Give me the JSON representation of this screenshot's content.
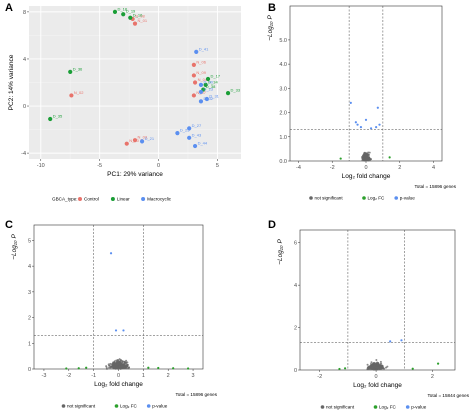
{
  "chart_data": [
    {
      "panel": "A",
      "type": "scatter",
      "xlabel": "PC1: 29% variance",
      "ylabel": "PC2: 14% variance",
      "xlim": [
        -11,
        7
      ],
      "ylim": [
        -4.5,
        8.5
      ],
      "xticks": [
        -10,
        -5,
        0,
        5
      ],
      "yticks": [
        -4,
        0,
        4,
        8
      ],
      "grid": true,
      "legend": {
        "title": "GBCA_type:",
        "placement": "bottom",
        "entries": [
          "Control",
          "Linear",
          "Macrocyclic"
        ]
      },
      "colors": {
        "Control": "#e8736b",
        "Linear": "#1a9e36",
        "Macrocyclic": "#5b8ff0"
      },
      "series": [
        {
          "name": "Control",
          "points": [
            {
              "x": -2.2,
              "y": 7.4,
              "label": "N_08"
            },
            {
              "x": -2.0,
              "y": 7.0,
              "label": "N_01"
            },
            {
              "x": 3.0,
              "y": 3.5,
              "label": "N_06"
            },
            {
              "x": 3.0,
              "y": 2.6,
              "label": "N_09"
            },
            {
              "x": 3.1,
              "y": 2.0,
              "label": "N_04"
            },
            {
              "x": 3.0,
              "y": 0.9,
              "label": "N_07"
            },
            {
              "x": -7.4,
              "y": 0.9,
              "label": "N_02"
            },
            {
              "x": -2.0,
              "y": -2.9,
              "label": "N_03"
            },
            {
              "x": -2.7,
              "y": -3.2,
              "label": "N_10"
            }
          ]
        },
        {
          "name": "Linear",
          "points": [
            {
              "x": -3.7,
              "y": 8.0,
              "label": "D_18"
            },
            {
              "x": -3.0,
              "y": 7.8,
              "label": "D_19"
            },
            {
              "x": -2.4,
              "y": 7.5,
              "label": "D_16"
            },
            {
              "x": -7.5,
              "y": 2.9,
              "label": "D_36"
            },
            {
              "x": 4.2,
              "y": 2.3,
              "label": "D_17"
            },
            {
              "x": 4.0,
              "y": 1.8,
              "label": "D_34"
            },
            {
              "x": 3.8,
              "y": 1.4,
              "label": "D_38"
            },
            {
              "x": 5.9,
              "y": 1.1,
              "label": "D_33"
            },
            {
              "x": -9.2,
              "y": -1.1,
              "label": "D_35"
            }
          ]
        },
        {
          "name": "Macrocyclic",
          "points": [
            {
              "x": 3.2,
              "y": 4.6,
              "label": "D_41"
            },
            {
              "x": 3.6,
              "y": 1.8,
              "label": "D_40"
            },
            {
              "x": 3.6,
              "y": 1.2,
              "label": "D_23"
            },
            {
              "x": 4.1,
              "y": 0.6,
              "label": "D_31"
            },
            {
              "x": 3.6,
              "y": 0.4,
              "label": "D_32"
            },
            {
              "x": 2.6,
              "y": -1.9,
              "label": "D_27"
            },
            {
              "x": 1.6,
              "y": -2.3,
              "label": "D_25"
            },
            {
              "x": -1.4,
              "y": -3.0,
              "label": "D_21"
            },
            {
              "x": 2.6,
              "y": -2.7,
              "label": "D_43"
            },
            {
              "x": 3.1,
              "y": -3.4,
              "label": "D_44"
            }
          ]
        }
      ]
    },
    {
      "panel": "B",
      "type": "scatter",
      "xlabel": "Log₂ fold change",
      "ylabel": "−Log₁₀ P",
      "xlim": [
        -4.5,
        4.5
      ],
      "ylim": [
        0,
        6.4
      ],
      "xticks": [
        -4,
        -2,
        0,
        2,
        4
      ],
      "yticks": [
        0,
        1,
        2,
        3,
        4,
        5
      ],
      "ytick_labels": [
        "0.0",
        "1.0",
        "2.0",
        "3.0",
        "4.0",
        "5.0"
      ],
      "thresholds": {
        "fc": [
          -1,
          1
        ],
        "p": 1.3
      },
      "total": "Total = 15896 genes",
      "legend": {
        "placement": "bottom",
        "entries": [
          "not significant",
          "Log₂ FC",
          "p-value"
        ]
      },
      "colors": {
        "ns": "#666666",
        "fc": "#2ca02c",
        "p": "#5b8ff0"
      },
      "points": {
        "p": [
          [
            -0.9,
            2.4
          ],
          [
            -0.6,
            1.6
          ],
          [
            -0.5,
            1.5
          ],
          [
            -0.3,
            1.4
          ],
          [
            0.3,
            1.35
          ],
          [
            0.0,
            1.7
          ],
          [
            0.8,
            1.5
          ],
          [
            0.7,
            2.2
          ],
          [
            0.6,
            1.4
          ]
        ],
        "fc": [
          [
            1.4,
            0.15
          ],
          [
            -1.5,
            0.1
          ]
        ]
      }
    },
    {
      "panel": "C",
      "type": "scatter",
      "xlabel": "Log₂ fold change",
      "ylabel": "−Log₁₀ P",
      "xlim": [
        -3.4,
        3.4
      ],
      "ylim": [
        0,
        5.6
      ],
      "xticks": [
        -3,
        -2,
        -1,
        0,
        1,
        2,
        3
      ],
      "yticks": [
        0,
        1,
        2,
        3,
        4,
        5
      ],
      "thresholds": {
        "fc": [
          -1,
          1
        ],
        "p": 1.3
      },
      "total": "Total = 15896 genes",
      "legend": {
        "placement": "bottom",
        "entries": [
          "not significant",
          "Log₂ FC",
          "p-value"
        ]
      },
      "colors": {
        "ns": "#666666",
        "fc": "#2ca02c",
        "p": "#5b8ff0"
      },
      "points": {
        "p": [
          [
            -0.3,
            4.5
          ],
          [
            -0.1,
            1.5
          ],
          [
            0.2,
            1.5
          ]
        ],
        "fc": [
          [
            -2.1,
            0.02
          ],
          [
            -1.6,
            0.03
          ],
          [
            -1.3,
            0.05
          ],
          [
            1.2,
            0.05
          ],
          [
            1.6,
            0.04
          ],
          [
            2.2,
            0.03
          ],
          [
            2.8,
            0.02
          ]
        ]
      }
    },
    {
      "panel": "D",
      "type": "scatter",
      "xlabel": "Log₂ fold change",
      "ylabel": "−Log₁₀ P",
      "xlim": [
        -2.7,
        2.8
      ],
      "ylim": [
        0,
        6.6
      ],
      "xticks": [
        -2,
        0,
        2
      ],
      "yticks": [
        0,
        2,
        4,
        6
      ],
      "thresholds": {
        "fc": [
          -1,
          1
        ],
        "p": 1.3
      },
      "total": "Total = 15844 genes",
      "legend": {
        "placement": "bottom",
        "entries": [
          "not significant",
          "Log₂ FC",
          "p-value"
        ]
      },
      "colors": {
        "ns": "#666666",
        "fc": "#2ca02c",
        "p": "#5b8ff0"
      },
      "points": {
        "p": [
          [
            0.9,
            1.4
          ],
          [
            0.5,
            1.35
          ]
        ],
        "fc": [
          [
            -1.3,
            0.05
          ],
          [
            -1.1,
            0.08
          ],
          [
            1.3,
            0.06
          ],
          [
            2.2,
            0.3
          ]
        ]
      }
    }
  ],
  "panels": {
    "a": {
      "label": "A"
    },
    "b": {
      "label": "B"
    },
    "c": {
      "label": "C"
    },
    "d": {
      "label": "D"
    }
  }
}
